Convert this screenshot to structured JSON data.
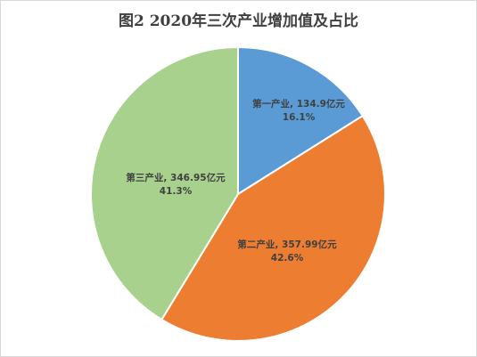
{
  "chart_data": {
    "type": "pie",
    "title": "图2  2020年三次产业增加值及占比",
    "slices": [
      {
        "name": "第一产业",
        "value": 134.9,
        "value_text": "134.9亿元",
        "percent": 16.1,
        "percent_text": "16.1%",
        "color": "#5b9bd5"
      },
      {
        "name": "第二产业",
        "value": 357.99,
        "value_text": "357.99亿元",
        "percent": 42.6,
        "percent_text": "42.6%",
        "color": "#ed7d31"
      },
      {
        "name": "第三产业",
        "value": 346.95,
        "value_text": "346.95亿元",
        "percent": 41.3,
        "percent_text": "41.3%",
        "color": "#a9d18e"
      }
    ],
    "separator": ", ",
    "start_angle": "12 o'clock",
    "direction": "clockwise",
    "legend": "none"
  }
}
